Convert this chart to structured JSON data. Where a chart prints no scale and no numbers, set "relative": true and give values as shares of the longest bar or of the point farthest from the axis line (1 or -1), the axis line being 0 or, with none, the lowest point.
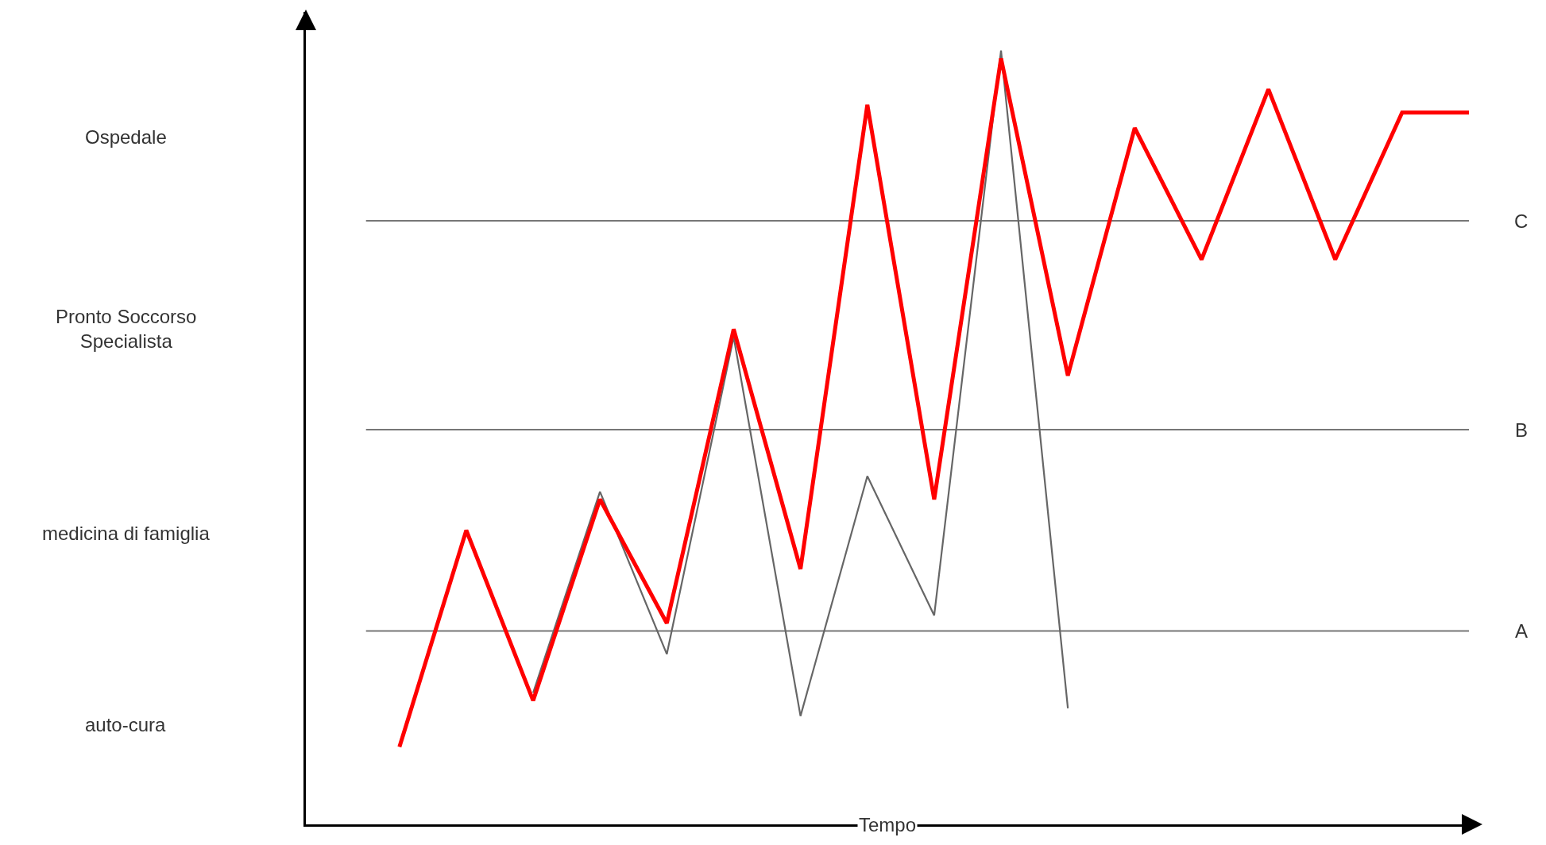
{
  "chart_data": {
    "type": "line",
    "relative": true,
    "xlabel": "Tempo",
    "marker": "none",
    "line_style": "solid",
    "categories": [
      null,
      null,
      null,
      null,
      null,
      null,
      null,
      null,
      null,
      null,
      null,
      null,
      null,
      null,
      null,
      null,
      null
    ],
    "series": [
      {
        "color": "#666666",
        "values": [
          null,
          null,
          0.17,
          0.43,
          0.22,
          0.63,
          0.14,
          0.45,
          0.27,
          1.0,
          0.15,
          null,
          null,
          null,
          null,
          null,
          null
        ]
      },
      {
        "color": "#ff0000",
        "values": [
          0.1,
          0.38,
          0.16,
          0.42,
          0.26,
          0.64,
          0.33,
          0.93,
          0.42,
          0.99,
          0.58,
          0.9,
          0.73,
          0.95,
          0.73,
          0.92,
          0.92
        ]
      }
    ],
    "ref_lines": [
      {
        "axis": "y",
        "value": 0.25,
        "label": "A",
        "color": "#777777"
      },
      {
        "axis": "y",
        "value": 0.51,
        "label": "B",
        "color": "#777777"
      },
      {
        "axis": "y",
        "value": 0.78,
        "label": "C",
        "color": "#777777"
      }
    ],
    "annotations": [
      "Ospedale",
      "Pronto Soccorso\nSpecialista",
      "medicina di famiglia",
      "auto-cura"
    ]
  }
}
